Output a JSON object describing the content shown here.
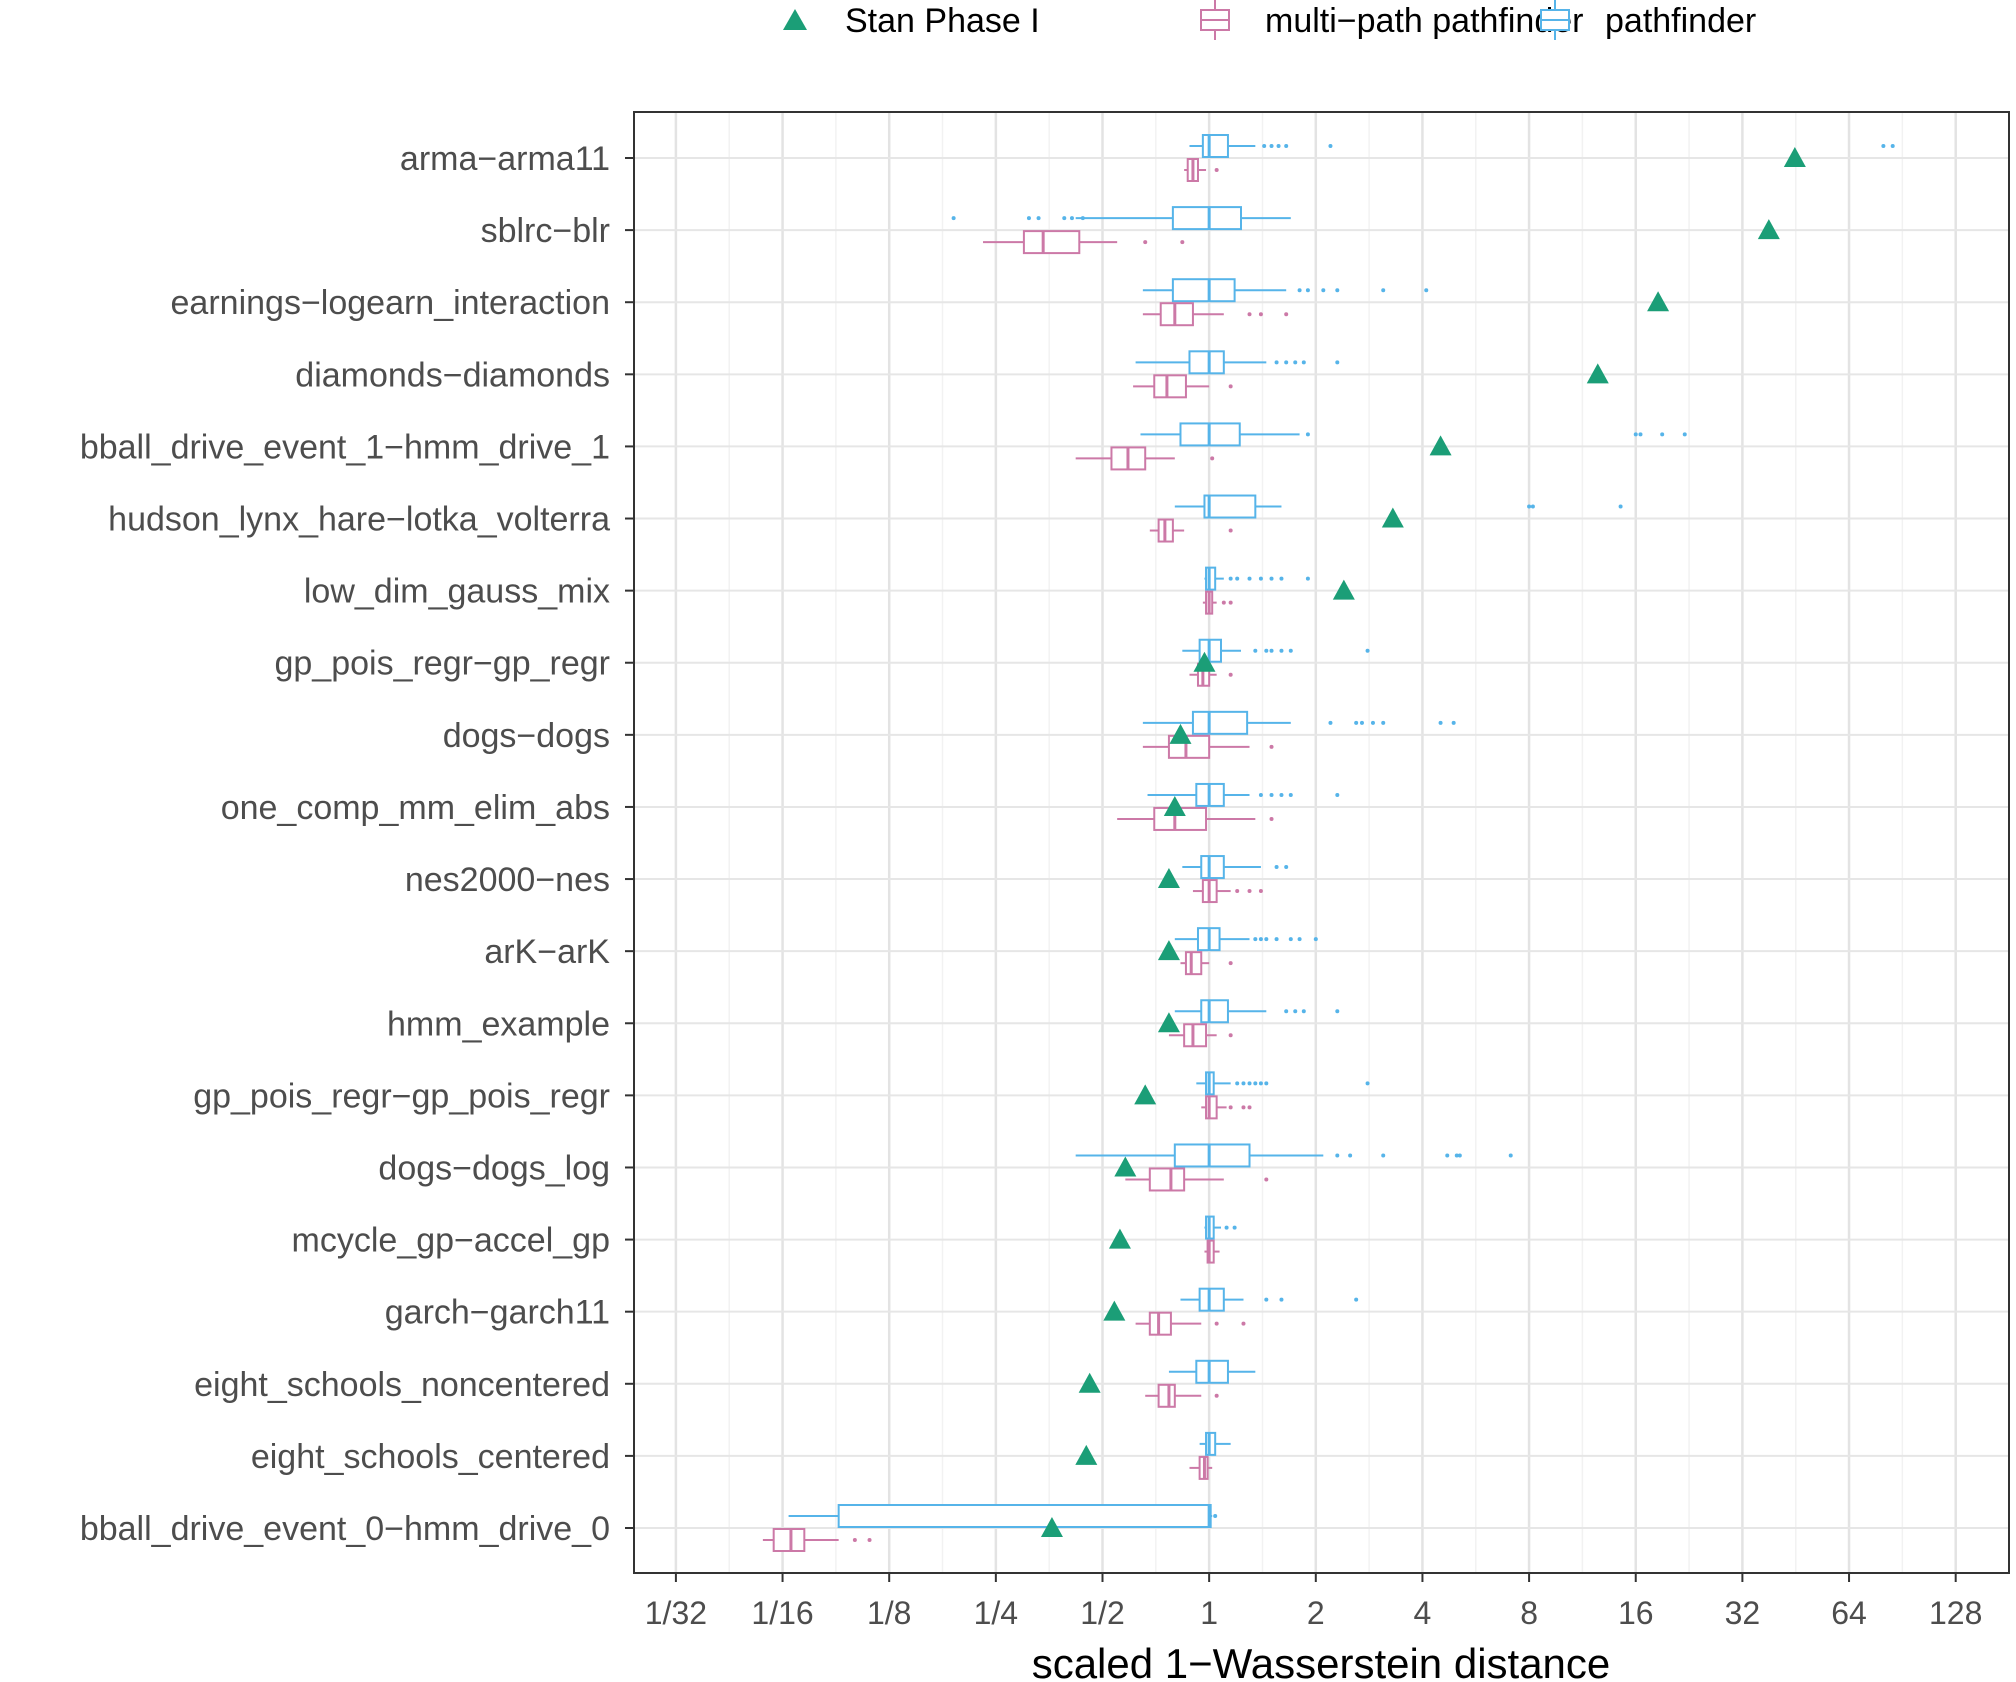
{
  "chart_data": {
    "type": "boxplot",
    "xlabel": "scaled 1−Wasserstein distance",
    "ylabel": "",
    "x_scale": "log2",
    "xlim": [
      0.0238,
      181
    ],
    "x_ticks": [
      0.03125,
      0.0625,
      0.125,
      0.25,
      0.5,
      1,
      2,
      4,
      8,
      16,
      32,
      64,
      128
    ],
    "x_tick_labels": [
      "1/32",
      "1/16",
      "1/8",
      "1/4",
      "1/2",
      "1",
      "2",
      "4",
      "8",
      "16",
      "32",
      "64",
      "128"
    ],
    "grid": true,
    "legend": {
      "placement": "top",
      "entries": [
        {
          "label": "Stan Phase I",
          "shape": "triangle",
          "color": "#1b9e77"
        },
        {
          "label": "multi−path pathfinder",
          "shape": "box",
          "color": "#cc79a7"
        },
        {
          "label": "pathfinder",
          "shape": "box",
          "color": "#56b4e9"
        }
      ]
    },
    "colors": {
      "stan": "#1b9e77",
      "multipath": "#cc79a7",
      "pathfinder": "#56b4e9"
    },
    "categories": [
      "arma−arma11",
      "sblrc−blr",
      "earnings−logearn_interaction",
      "diamonds−diamonds",
      "bball_drive_event_1−hmm_drive_1",
      "hudson_lynx_hare−lotka_volterra",
      "low_dim_gauss_mix",
      "gp_pois_regr−gp_regr",
      "dogs−dogs",
      "one_comp_mm_elim_abs",
      "nes2000−nes",
      "arK−arK",
      "hmm_example",
      "gp_pois_regr−gp_pois_regr",
      "dogs−dogs_log",
      "mcycle_gp−accel_gp",
      "garch−garch11",
      "eight_schools_noncentered",
      "eight_schools_centered",
      "bball_drive_event_0−hmm_drive_0"
    ],
    "stan_phase_I": [
      45,
      38,
      18.5,
      12.5,
      4.5,
      3.3,
      2.4,
      0.97,
      0.83,
      0.8,
      0.77,
      0.77,
      0.77,
      0.66,
      0.58,
      0.56,
      0.54,
      0.46,
      0.45,
      0.36
    ],
    "pathfinder": [
      {
        "whislo": 0.88,
        "q1": 0.96,
        "med": 1.0,
        "q3": 1.13,
        "whishi": 1.35,
        "outliers": [
          1.43,
          1.5,
          1.57,
          1.65,
          2.2,
          80,
          85
        ]
      },
      {
        "whislo": 0.42,
        "q1": 0.79,
        "med": 1.0,
        "q3": 1.23,
        "whishi": 1.7,
        "outliers": [
          0.19,
          0.31,
          0.33,
          0.39,
          0.41,
          0.44
        ]
      },
      {
        "whislo": 0.65,
        "q1": 0.79,
        "med": 1.0,
        "q3": 1.18,
        "whishi": 1.65,
        "outliers": [
          1.8,
          1.9,
          2.1,
          2.3,
          3.1,
          4.1
        ]
      },
      {
        "whislo": 0.62,
        "q1": 0.88,
        "med": 1.0,
        "q3": 1.1,
        "whishi": 1.45,
        "outliers": [
          1.55,
          1.65,
          1.75,
          1.85,
          2.3
        ]
      },
      {
        "whislo": 0.64,
        "q1": 0.83,
        "med": 1.0,
        "q3": 1.22,
        "whishi": 1.8,
        "outliers": [
          1.9,
          16,
          16.5,
          19,
          22
        ]
      },
      {
        "whislo": 0.8,
        "q1": 0.97,
        "med": 1.0,
        "q3": 1.35,
        "whishi": 1.6,
        "outliers": [
          8.0,
          8.2,
          14.5
        ]
      },
      {
        "whislo": 0.97,
        "q1": 0.98,
        "med": 1.0,
        "q3": 1.04,
        "whishi": 1.1,
        "outliers": [
          1.15,
          1.2,
          1.3,
          1.4,
          1.5,
          1.6,
          1.9
        ]
      },
      {
        "whislo": 0.84,
        "q1": 0.94,
        "med": 1.0,
        "q3": 1.08,
        "whishi": 1.23,
        "outliers": [
          1.35,
          1.45,
          1.5,
          1.6,
          1.7,
          2.8
        ]
      },
      {
        "whislo": 0.65,
        "q1": 0.9,
        "med": 1.0,
        "q3": 1.28,
        "whishi": 1.7,
        "outliers": [
          2.2,
          2.6,
          2.7,
          2.9,
          3.1,
          4.5,
          4.9
        ]
      },
      {
        "whislo": 0.67,
        "q1": 0.92,
        "med": 1.0,
        "q3": 1.1,
        "whishi": 1.3,
        "outliers": [
          1.4,
          1.5,
          1.6,
          1.7,
          2.3
        ]
      },
      {
        "whislo": 0.84,
        "q1": 0.95,
        "med": 1.0,
        "q3": 1.1,
        "whishi": 1.4,
        "outliers": [
          1.55,
          1.65
        ]
      },
      {
        "whislo": 0.8,
        "q1": 0.93,
        "med": 1.0,
        "q3": 1.07,
        "whishi": 1.3,
        "outliers": [
          1.35,
          1.4,
          1.45,
          1.55,
          1.7,
          1.8,
          2.0
        ]
      },
      {
        "whislo": 0.8,
        "q1": 0.95,
        "med": 1.0,
        "q3": 1.13,
        "whishi": 1.45,
        "outliers": [
          1.65,
          1.75,
          1.85,
          2.3
        ]
      },
      {
        "whislo": 0.92,
        "q1": 0.98,
        "med": 1.0,
        "q3": 1.03,
        "whishi": 1.15,
        "outliers": [
          1.2,
          1.25,
          1.3,
          1.35,
          1.4,
          1.45,
          2.8
        ]
      },
      {
        "whislo": 0.42,
        "q1": 0.8,
        "med": 1.0,
        "q3": 1.3,
        "whishi": 2.1,
        "outliers": [
          2.3,
          2.5,
          3.1,
          4.7,
          5.0,
          5.1,
          7.1
        ]
      },
      {
        "whislo": 0.97,
        "q1": 0.98,
        "med": 1.0,
        "q3": 1.03,
        "whishi": 1.08,
        "outliers": [
          1.12,
          1.18
        ]
      },
      {
        "whislo": 0.83,
        "q1": 0.94,
        "med": 1.0,
        "q3": 1.1,
        "whishi": 1.25,
        "outliers": [
          1.45,
          1.6,
          2.6
        ]
      },
      {
        "whislo": 0.77,
        "q1": 0.92,
        "med": 1.0,
        "q3": 1.13,
        "whishi": 1.35,
        "outliers": []
      },
      {
        "whislo": 0.94,
        "q1": 0.98,
        "med": 1.0,
        "q3": 1.04,
        "whishi": 1.15,
        "outliers": []
      },
      {
        "whislo": 0.065,
        "q1": 0.09,
        "med": 1.0,
        "q3": 1.01,
        "whishi": 1.02,
        "outliers": [
          1.04
        ]
      }
    ],
    "multipath": [
      {
        "whislo": 0.85,
        "q1": 0.87,
        "med": 0.9,
        "q3": 0.93,
        "whishi": 0.98,
        "outliers": [
          1.05
        ]
      },
      {
        "whislo": 0.23,
        "q1": 0.3,
        "med": 0.34,
        "q3": 0.43,
        "whishi": 0.55,
        "outliers": [
          0.66,
          0.84
        ]
      },
      {
        "whislo": 0.65,
        "q1": 0.73,
        "med": 0.8,
        "q3": 0.9,
        "whishi": 1.1,
        "outliers": [
          1.3,
          1.4,
          1.65
        ]
      },
      {
        "whislo": 0.61,
        "q1": 0.7,
        "med": 0.76,
        "q3": 0.86,
        "whishi": 1.0,
        "outliers": [
          1.15
        ]
      },
      {
        "whislo": 0.42,
        "q1": 0.53,
        "med": 0.59,
        "q3": 0.66,
        "whishi": 0.8,
        "outliers": [
          1.02
        ]
      },
      {
        "whislo": 0.68,
        "q1": 0.72,
        "med": 0.75,
        "q3": 0.79,
        "whishi": 0.85,
        "outliers": [
          1.15
        ]
      },
      {
        "whislo": 0.96,
        "q1": 0.98,
        "med": 1.0,
        "q3": 1.02,
        "whishi": 1.05,
        "outliers": [
          1.1,
          1.15
        ]
      },
      {
        "whislo": 0.88,
        "q1": 0.93,
        "med": 0.96,
        "q3": 1.0,
        "whishi": 1.05,
        "outliers": [
          1.15
        ]
      },
      {
        "whislo": 0.65,
        "q1": 0.77,
        "med": 0.86,
        "q3": 1.0,
        "whishi": 1.3,
        "outliers": [
          1.5
        ]
      },
      {
        "whislo": 0.55,
        "q1": 0.7,
        "med": 0.8,
        "q3": 0.98,
        "whishi": 1.35,
        "outliers": [
          1.5
        ]
      },
      {
        "whislo": 0.9,
        "q1": 0.96,
        "med": 1.0,
        "q3": 1.05,
        "whishi": 1.15,
        "outliers": [
          1.2,
          1.3,
          1.4
        ]
      },
      {
        "whislo": 0.83,
        "q1": 0.86,
        "med": 0.89,
        "q3": 0.95,
        "whishi": 1.0,
        "outliers": [
          1.15
        ]
      },
      {
        "whislo": 0.77,
        "q1": 0.85,
        "med": 0.9,
        "q3": 0.98,
        "whishi": 1.05,
        "outliers": [
          1.15
        ]
      },
      {
        "whislo": 0.95,
        "q1": 0.98,
        "med": 1.0,
        "q3": 1.05,
        "whishi": 1.12,
        "outliers": [
          1.15,
          1.25,
          1.3
        ]
      },
      {
        "whislo": 0.58,
        "q1": 0.68,
        "med": 0.78,
        "q3": 0.85,
        "whishi": 1.1,
        "outliers": [
          1.45
        ]
      },
      {
        "whislo": 0.97,
        "q1": 0.99,
        "med": 1.0,
        "q3": 1.03,
        "whishi": 1.07,
        "outliers": []
      },
      {
        "whislo": 0.62,
        "q1": 0.68,
        "med": 0.72,
        "q3": 0.78,
        "whishi": 0.95,
        "outliers": [
          1.05,
          1.25
        ]
      },
      {
        "whislo": 0.66,
        "q1": 0.72,
        "med": 0.77,
        "q3": 0.8,
        "whishi": 0.95,
        "outliers": [
          1.05
        ]
      },
      {
        "whislo": 0.88,
        "q1": 0.94,
        "med": 0.97,
        "q3": 0.99,
        "whishi": 1.02,
        "outliers": []
      },
      {
        "whislo": 0.055,
        "q1": 0.059,
        "med": 0.066,
        "q3": 0.072,
        "whishi": 0.09,
        "outliers": [
          0.1,
          0.11
        ]
      }
    ]
  }
}
